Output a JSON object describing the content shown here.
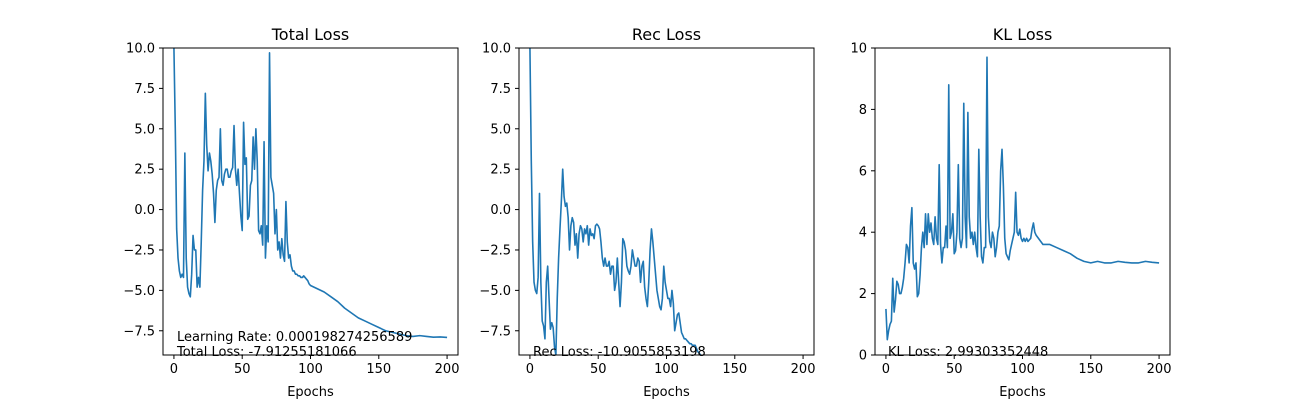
{
  "chart_data": [
    {
      "type": "line",
      "title": "Total Loss",
      "xlabel": "Epochs",
      "ylabel": "",
      "xlim": [
        -8,
        208
      ],
      "ylim": [
        -9,
        10
      ],
      "xticks": [
        0,
        50,
        100,
        150,
        200
      ],
      "yticks": [
        -7.5,
        -5.0,
        -2.5,
        0.0,
        2.5,
        5.0,
        7.5,
        10.0
      ],
      "ytick_labels": [
        "−7.5",
        "−5.0",
        "−2.5",
        "0.0",
        "2.5",
        "5.0",
        "7.5",
        "10.0"
      ],
      "series": [
        {
          "color": "#1f77b4",
          "x": [
            0,
            1,
            2,
            3,
            4,
            5,
            6,
            7,
            8,
            9,
            10,
            11,
            12,
            13,
            14,
            15,
            16,
            17,
            18,
            19,
            20,
            21,
            22,
            23,
            24,
            25,
            26,
            27,
            28,
            29,
            30,
            31,
            32,
            33,
            34,
            35,
            36,
            37,
            38,
            39,
            40,
            41,
            42,
            43,
            44,
            45,
            46,
            47,
            48,
            49,
            50,
            51,
            52,
            53,
            54,
            55,
            56,
            57,
            58,
            59,
            60,
            61,
            62,
            63,
            64,
            65,
            66,
            67,
            68,
            69,
            70,
            71,
            72,
            73,
            74,
            75,
            76,
            77,
            78,
            79,
            80,
            81,
            82,
            83,
            84,
            85,
            86,
            87,
            88,
            89,
            90,
            91,
            92,
            93,
            94,
            95,
            96,
            97,
            98,
            99,
            100,
            105,
            110,
            115,
            120,
            125,
            130,
            135,
            140,
            145,
            150,
            155,
            160,
            165,
            170,
            175,
            180,
            185,
            190,
            195,
            200
          ],
          "y": [
            10,
            5.0,
            -1.2,
            -3.0,
            -3.8,
            -4.2,
            -4.0,
            -4.2,
            3.5,
            -3.0,
            -4.8,
            -5.2,
            -5.4,
            -4.0,
            -1.6,
            -2.5,
            -2.5,
            -4.8,
            -4.2,
            -4.8,
            -2.0,
            1.2,
            3.0,
            7.2,
            4.0,
            2.4,
            3.5,
            3.0,
            2.2,
            1.0,
            -0.8,
            1.2,
            1.8,
            2.0,
            5.0,
            1.8,
            1.5,
            2.2,
            2.5,
            2.5,
            2.0,
            2.0,
            2.4,
            2.6,
            5.2,
            2.5,
            1.5,
            2.5,
            1.0,
            -0.4,
            -1.3,
            5.4,
            2.8,
            3.2,
            -0.6,
            -0.4,
            1.5,
            1.8,
            4.5,
            2.5,
            5.0,
            3.0,
            -1.3,
            -1.5,
            -1.0,
            -2.2,
            4.2,
            -3.0,
            -1.0,
            -2.0,
            9.7,
            2.0,
            1.5,
            1.0,
            -1.5,
            0.0,
            -2.5,
            -2.0,
            -3.0,
            -1.8,
            -2.8,
            -3.2,
            0.5,
            -2.0,
            -3.0,
            -2.8,
            -3.5,
            -3.8,
            -3.8,
            -4.0,
            -4.0,
            -4.1,
            -4.1,
            -4.2,
            -4.2,
            -4.1,
            -4.2,
            -4.3,
            -4.4,
            -4.6,
            -4.7,
            -4.9,
            -5.1,
            -5.4,
            -5.7,
            -6.1,
            -6.4,
            -6.7,
            -6.9,
            -7.1,
            -7.3,
            -7.5,
            -7.6,
            -7.7,
            -7.8,
            -7.85,
            -7.8,
            -7.85,
            -7.9,
            -7.88,
            -7.91
          ]
        }
      ],
      "annotations": [
        "Learning Rate: 0.000198274256589",
        "Total Loss: -7.91255181066"
      ]
    },
    {
      "type": "line",
      "title": "Rec Loss",
      "xlabel": "Epochs",
      "ylabel": "",
      "xlim": [
        -8,
        208
      ],
      "ylim": [
        -9,
        10
      ],
      "xticks": [
        0,
        50,
        100,
        150,
        200
      ],
      "yticks": [
        -7.5,
        -5.0,
        -2.5,
        0.0,
        2.5,
        5.0,
        7.5,
        10.0
      ],
      "ytick_labels": [
        "−7.5",
        "−5.0",
        "−2.5",
        "0.0",
        "2.5",
        "5.0",
        "7.5",
        "10.0"
      ],
      "series": [
        {
          "color": "#1f77b4",
          "x": [
            0,
            1,
            2,
            3,
            4,
            5,
            6,
            7,
            8,
            9,
            10,
            11,
            12,
            13,
            14,
            15,
            16,
            17,
            18,
            19,
            20,
            21,
            22,
            23,
            24,
            25,
            26,
            27,
            28,
            29,
            30,
            31,
            32,
            33,
            34,
            35,
            36,
            37,
            38,
            39,
            40,
            41,
            42,
            43,
            44,
            45,
            46,
            47,
            48,
            49,
            50,
            51,
            52,
            53,
            54,
            55,
            56,
            57,
            58,
            59,
            60,
            61,
            62,
            63,
            64,
            65,
            66,
            67,
            68,
            69,
            70,
            71,
            72,
            73,
            74,
            75,
            76,
            77,
            78,
            79,
            80,
            81,
            82,
            83,
            84,
            85,
            86,
            87,
            88,
            89,
            90,
            91,
            92,
            93,
            94,
            95,
            96,
            97,
            98,
            99,
            100,
            101,
            102,
            103,
            104,
            105,
            106,
            107,
            108,
            109,
            110,
            111,
            112,
            113,
            114,
            115,
            116,
            117,
            118,
            119,
            120,
            121,
            122,
            123,
            124,
            125,
            126
          ],
          "y": [
            10,
            3.0,
            -2.0,
            -4.5,
            -5.0,
            -5.2,
            -4.2,
            1.0,
            -4.5,
            -6.9,
            -7.2,
            -8.0,
            -4.5,
            -3.5,
            -5.5,
            -7.4,
            -7.0,
            -7.3,
            -8.5,
            -9.0,
            -5.5,
            -3.0,
            -1.2,
            0.5,
            2.5,
            0.8,
            0.2,
            0.4,
            -0.5,
            -2.5,
            -1.0,
            -0.5,
            -0.8,
            -2.2,
            -1.5,
            -3.0,
            -1.5,
            -1.0,
            -1.2,
            -2.0,
            -1.2,
            -1.5,
            -1.0,
            -2.2,
            -1.2,
            -1.6,
            -1.5,
            -1.8,
            -1.0,
            -0.9,
            -1.0,
            -1.2,
            -2.0,
            -3.0,
            -3.5,
            -3.0,
            -3.5,
            -3.5,
            -3.2,
            -4.0,
            -3.5,
            -3.5,
            -5.0,
            -4.5,
            -3.0,
            -4.5,
            -6.0,
            -4.5,
            -1.8,
            -2.0,
            -2.5,
            -3.5,
            -3.8,
            -4.0,
            -3.5,
            -2.5,
            -3.0,
            -3.5,
            -3.5,
            -3.0,
            -3.2,
            -4.5,
            -3.5,
            -3.2,
            -4.8,
            -5.5,
            -6.0,
            -4.5,
            -2.5,
            -1.2,
            -2.0,
            -3.0,
            -4.0,
            -5.0,
            -5.5,
            -6.0,
            -6.2,
            -5.5,
            -3.5,
            -4.5,
            -5.0,
            -5.5,
            -5.5,
            -6.0,
            -5.0,
            -5.8,
            -7.5,
            -7.0,
            -6.5,
            -6.4,
            -7.0,
            -7.6,
            -7.8,
            -8.0,
            -8.0,
            -8.1,
            -8.2,
            -8.3,
            -8.3,
            -8.4,
            -8.4,
            -8.4,
            -8.6,
            -8.8,
            -8.9,
            -9.0,
            -9.1
          ]
        }
      ],
      "annotations": [
        "Rec Loss: -10.9055853198"
      ]
    },
    {
      "type": "line",
      "title": "KL Loss",
      "xlabel": "Epochs",
      "ylabel": "",
      "xlim": [
        -8,
        208
      ],
      "ylim": [
        0,
        10
      ],
      "xticks": [
        0,
        50,
        100,
        150,
        200
      ],
      "yticks": [
        0,
        2,
        4,
        6,
        8,
        10
      ],
      "ytick_labels": [
        "0",
        "2",
        "4",
        "6",
        "8",
        "10"
      ],
      "series": [
        {
          "color": "#1f77b4",
          "x": [
            0,
            1,
            2,
            3,
            4,
            5,
            6,
            7,
            8,
            9,
            10,
            11,
            12,
            13,
            14,
            15,
            16,
            17,
            18,
            19,
            20,
            21,
            22,
            23,
            24,
            25,
            26,
            27,
            28,
            29,
            30,
            31,
            32,
            33,
            34,
            35,
            36,
            37,
            38,
            39,
            40,
            41,
            42,
            43,
            44,
            45,
            46,
            47,
            48,
            49,
            50,
            51,
            52,
            53,
            54,
            55,
            56,
            57,
            58,
            59,
            60,
            61,
            62,
            63,
            64,
            65,
            66,
            67,
            68,
            69,
            70,
            71,
            72,
            73,
            74,
            75,
            76,
            77,
            78,
            79,
            80,
            81,
            82,
            83,
            84,
            85,
            86,
            87,
            88,
            89,
            90,
            91,
            92,
            93,
            94,
            95,
            96,
            97,
            98,
            99,
            100,
            101,
            102,
            103,
            104,
            105,
            106,
            107,
            108,
            109,
            110,
            115,
            120,
            125,
            130,
            135,
            140,
            145,
            150,
            155,
            160,
            165,
            170,
            175,
            180,
            185,
            190,
            195,
            200
          ],
          "y": [
            1.5,
            0.5,
            0.8,
            1.0,
            1.1,
            2.5,
            1.4,
            1.8,
            2.4,
            2.3,
            2.0,
            2.0,
            2.2,
            2.5,
            3.0,
            3.6,
            3.5,
            3.0,
            4.2,
            4.8,
            3.0,
            2.8,
            3.0,
            1.9,
            2.0,
            2.6,
            3.5,
            4.0,
            3.5,
            4.6,
            3.6,
            4.6,
            4.0,
            4.3,
            3.8,
            3.6,
            4.5,
            3.8,
            3.6,
            6.2,
            3.6,
            3.0,
            3.5,
            3.5,
            4.2,
            3.5,
            8.8,
            3.8,
            4.0,
            4.6,
            3.3,
            3.4,
            4.0,
            6.2,
            3.8,
            3.5,
            3.8,
            8.2,
            4.5,
            3.5,
            7.9,
            4.5,
            3.8,
            4.0,
            3.6,
            4.0,
            3.5,
            3.2,
            6.7,
            4.5,
            3.2,
            3.0,
            3.5,
            3.5,
            9.7,
            4.5,
            3.7,
            3.5,
            4.0,
            3.8,
            3.2,
            3.5,
            4.0,
            4.2,
            6.0,
            6.7,
            5.5,
            3.8,
            3.3,
            3.2,
            3.1,
            3.4,
            3.6,
            3.8,
            4.0,
            5.3,
            4.0,
            3.9,
            4.1,
            3.8,
            3.7,
            3.8,
            3.7,
            3.8,
            3.7,
            3.75,
            3.8,
            4.1,
            4.3,
            4.0,
            3.9,
            3.6,
            3.6,
            3.5,
            3.4,
            3.3,
            3.15,
            3.05,
            3.0,
            3.05,
            3.0,
            3.0,
            3.05,
            3.02,
            3.0,
            3.0,
            3.05,
            3.02,
            3.0
          ]
        }
      ],
      "annotations": [
        "KL Loss: 2.99303352448"
      ]
    }
  ]
}
